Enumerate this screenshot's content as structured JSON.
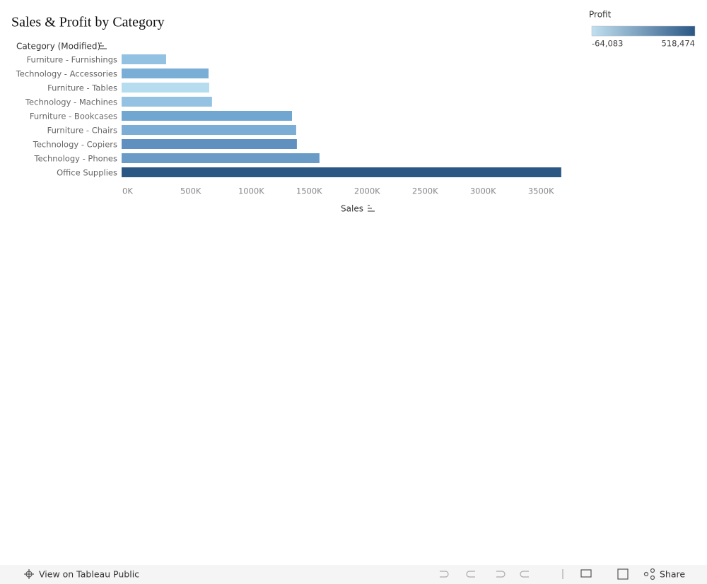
{
  "chart_data": {
    "type": "bar",
    "orientation": "horizontal",
    "title": "Sales & Profit by Category",
    "y_axis_title": "Category (Modified)",
    "x_axis_title": "Sales",
    "categories": [
      "Furniture - Furnishings",
      "Technology - Accessories",
      "Furniture - Tables",
      "Technology - Machines",
      "Furniture - Bookcases",
      "Furniture - Chairs",
      "Technology - Copiers",
      "Technology - Phones",
      "Office Supplies"
    ],
    "values": [
      384000,
      750000,
      756000,
      780000,
      1470000,
      1506000,
      1512000,
      1707000,
      3793000
    ],
    "colors": [
      "#93c1e1",
      "#7aaed6",
      "#b5dcef",
      "#94c2e2",
      "#70a6d0",
      "#7badd5",
      "#5f90bf",
      "#6a9bc7",
      "#2b5785"
    ],
    "xlim": [
      0,
      3800000
    ],
    "xticks": [
      {
        "value": 0,
        "label": "0K"
      },
      {
        "value": 500000,
        "label": "500K"
      },
      {
        "value": 1000000,
        "label": "1000K"
      },
      {
        "value": 1500000,
        "label": "1500K"
      },
      {
        "value": 2000000,
        "label": "2000K"
      },
      {
        "value": 2500000,
        "label": "2500K"
      },
      {
        "value": 3000000,
        "label": "3000K"
      },
      {
        "value": 3500000,
        "label": "3500K"
      }
    ],
    "legend": {
      "title": "Profit",
      "colors": [
        "#c1e0f0",
        "#2b5785"
      ],
      "ticks": [
        {
          "value": -64083,
          "label": "-64,083"
        },
        {
          "value": 518474,
          "label": "518,474"
        }
      ]
    }
  },
  "toolbar": {
    "view_link": "View on Tableau Public",
    "share": "Share"
  }
}
